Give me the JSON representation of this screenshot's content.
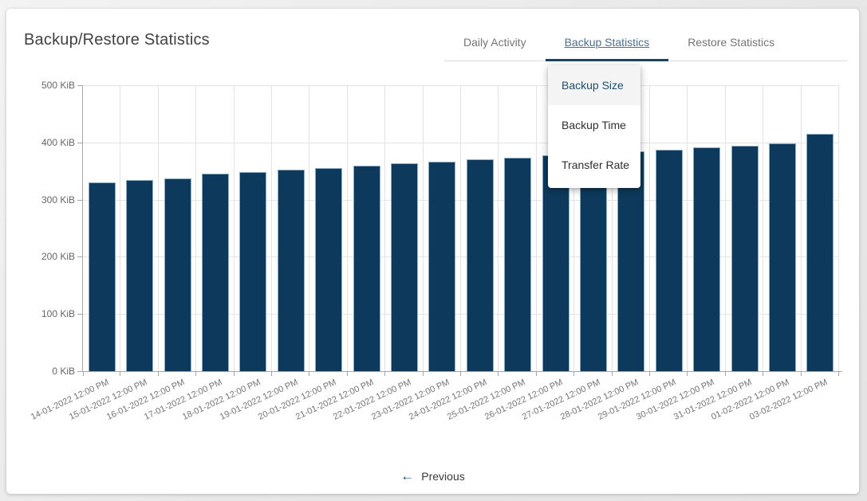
{
  "page": {
    "title": "Backup/Restore Statistics"
  },
  "tabs": [
    {
      "label": "Daily Activity",
      "active": false
    },
    {
      "label": "Backup Statistics",
      "active": true
    },
    {
      "label": "Restore Statistics",
      "active": false
    }
  ],
  "dropdown": {
    "items": [
      {
        "label": "Backup Size",
        "highlighted": true
      },
      {
        "label": "Backup Time",
        "highlighted": false
      },
      {
        "label": "Transfer Rate",
        "highlighted": false
      }
    ]
  },
  "pagination": {
    "previous_label": "Previous",
    "arrow_icon": "←"
  },
  "colors": {
    "bar_fill": "#0d3a5c",
    "bar_border": "#8fadc2",
    "tab_indicator": "#1c4360",
    "active_tab_text": "#4c708d",
    "inactive_tab_text": "#757575",
    "gridline": "#e3e3e3",
    "axis_line": "#a6a6a6",
    "axis_text": "#666666"
  },
  "chart_data": {
    "type": "bar",
    "title": "",
    "xlabel": "",
    "ylabel": "",
    "unit": "KiB",
    "categories": [
      "14-01-2022 12:00 PM",
      "15-01-2022 12:00 PM",
      "16-01-2022 12:00 PM",
      "17-01-2022 12:00 PM",
      "18-01-2022 12:00 PM",
      "19-01-2022 12:00 PM",
      "20-01-2022 12:00 PM",
      "21-01-2022 12:00 PM",
      "22-01-2022 12:00 PM",
      "23-01-2022 12:00 PM",
      "24-01-2022 12:00 PM",
      "25-01-2022 12:00 PM",
      "26-01-2022 12:00 PM",
      "27-01-2022 12:00 PM",
      "28-01-2022 12:00 PM",
      "29-01-2022 12:00 PM",
      "30-01-2022 12:00 PM",
      "31-01-2022 12:00 PM",
      "01-02-2022 12:00 PM",
      "03-02-2022 12:00 PM"
    ],
    "values": [
      330,
      334,
      337,
      345,
      348,
      352,
      355,
      359,
      363,
      366,
      370,
      373,
      377,
      380,
      384,
      387,
      391,
      394,
      399,
      415
    ],
    "y_ticks": [
      "0 KiB",
      "100 KiB",
      "200 KiB",
      "300 KiB",
      "400 KiB",
      "500 KiB"
    ],
    "ylim": [
      0,
      500
    ],
    "grid": true,
    "legend": "none"
  }
}
